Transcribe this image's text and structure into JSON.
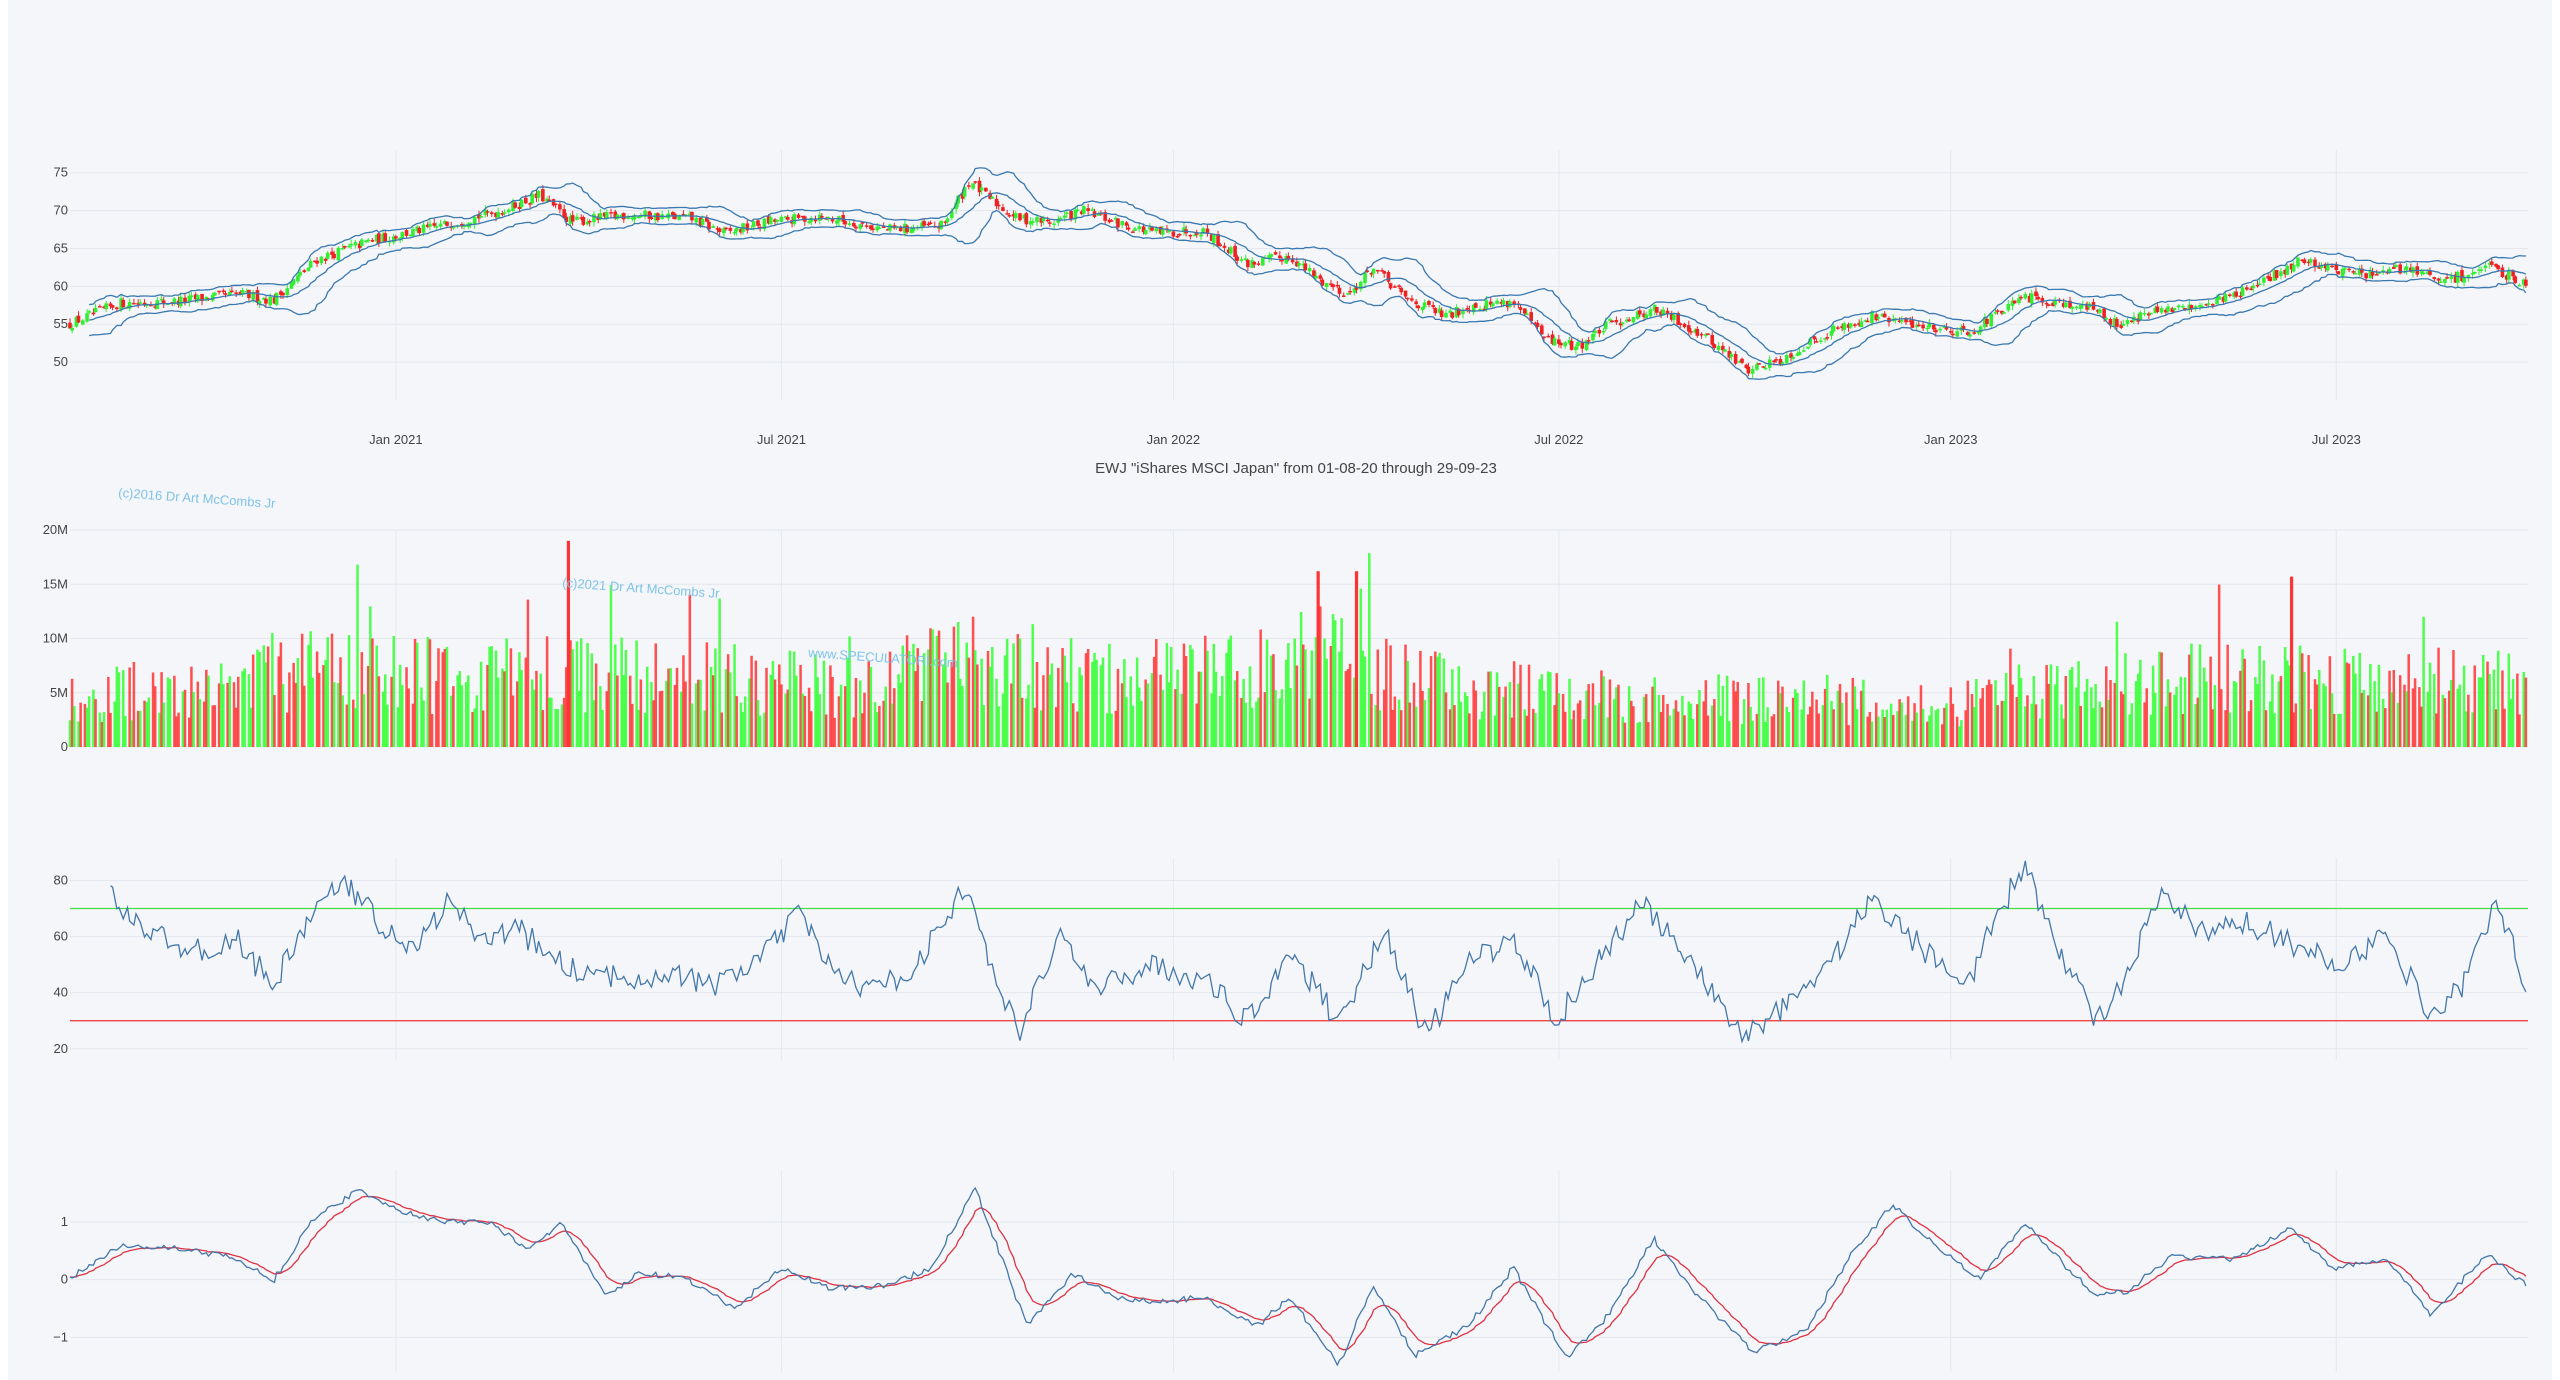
{
  "chart_data": [
    {
      "type": "candlestick",
      "panel": "price",
      "title": "EWJ \"iShares MSCI Japan\" from 01-08-20 through 29-09-23",
      "x_ticks": [
        "Jan 2021",
        "Jul 2021",
        "Jan 2022",
        "Jul 2022",
        "Jan 2023",
        "Jul 2023"
      ],
      "y_ticks": [
        "50",
        "55",
        "60",
        "65",
        "70",
        "75"
      ],
      "ylim": [
        45,
        78
      ],
      "x_range": [
        "2020-08-01",
        "2023-09-29"
      ],
      "overlays": [
        "bollinger-upper",
        "bollinger-middle",
        "bollinger-lower"
      ],
      "close_keypoints": [
        {
          "date": "2020-08-01",
          "value": 55.0
        },
        {
          "date": "2020-08-25",
          "value": 57.8
        },
        {
          "date": "2020-09-20",
          "value": 58.0
        },
        {
          "date": "2020-10-20",
          "value": 59.0
        },
        {
          "date": "2020-11-05",
          "value": 58.2
        },
        {
          "date": "2020-11-25",
          "value": 63.5
        },
        {
          "date": "2020-12-20",
          "value": 66.0
        },
        {
          "date": "2021-01-15",
          "value": 67.5
        },
        {
          "date": "2021-02-20",
          "value": 70.0
        },
        {
          "date": "2021-03-10",
          "value": 72.0
        },
        {
          "date": "2021-03-25",
          "value": 68.5
        },
        {
          "date": "2021-04-20",
          "value": 69.5
        },
        {
          "date": "2021-05-20",
          "value": 69.0
        },
        {
          "date": "2021-06-05",
          "value": 67.0
        },
        {
          "date": "2021-06-25",
          "value": 68.5
        },
        {
          "date": "2021-07-20",
          "value": 69.2
        },
        {
          "date": "2021-08-20",
          "value": 67.5
        },
        {
          "date": "2021-09-15",
          "value": 68.0
        },
        {
          "date": "2021-09-28",
          "value": 74.0
        },
        {
          "date": "2021-10-05",
          "value": 72.0
        },
        {
          "date": "2021-10-20",
          "value": 69.0
        },
        {
          "date": "2021-11-05",
          "value": 68.5
        },
        {
          "date": "2021-11-20",
          "value": 70.0
        },
        {
          "date": "2021-12-10",
          "value": 68.0
        },
        {
          "date": "2021-12-25",
          "value": 67.0
        },
        {
          "date": "2022-01-15",
          "value": 67.5
        },
        {
          "date": "2022-02-05",
          "value": 63.0
        },
        {
          "date": "2022-02-25",
          "value": 64.0
        },
        {
          "date": "2022-03-10",
          "value": 61.0
        },
        {
          "date": "2022-03-25",
          "value": 59.0
        },
        {
          "date": "2022-04-05",
          "value": 62.5
        },
        {
          "date": "2022-04-20",
          "value": 58.5
        },
        {
          "date": "2022-05-10",
          "value": 56.0
        },
        {
          "date": "2022-05-20",
          "value": 57.5
        },
        {
          "date": "2022-06-10",
          "value": 58.0
        },
        {
          "date": "2022-06-25",
          "value": 53.0
        },
        {
          "date": "2022-07-10",
          "value": 52.0
        },
        {
          "date": "2022-07-25",
          "value": 55.0
        },
        {
          "date": "2022-08-15",
          "value": 57.0
        },
        {
          "date": "2022-09-05",
          "value": 54.0
        },
        {
          "date": "2022-09-28",
          "value": 49.0
        },
        {
          "date": "2022-10-15",
          "value": 50.5
        },
        {
          "date": "2022-11-05",
          "value": 54.0
        },
        {
          "date": "2022-11-25",
          "value": 56.0
        },
        {
          "date": "2022-12-15",
          "value": 55.0
        },
        {
          "date": "2023-01-10",
          "value": 54.0
        },
        {
          "date": "2023-02-05",
          "value": 58.5
        },
        {
          "date": "2023-02-20",
          "value": 58.0
        },
        {
          "date": "2023-03-10",
          "value": 57.0
        },
        {
          "date": "2023-03-20",
          "value": 55.0
        },
        {
          "date": "2023-04-05",
          "value": 56.5
        },
        {
          "date": "2023-04-20",
          "value": 57.0
        },
        {
          "date": "2023-05-10",
          "value": 58.5
        },
        {
          "date": "2023-05-25",
          "value": 60.0
        },
        {
          "date": "2023-06-15",
          "value": 63.5
        },
        {
          "date": "2023-07-05",
          "value": 62.0
        },
        {
          "date": "2023-07-20",
          "value": 61.5
        },
        {
          "date": "2023-08-05",
          "value": 62.5
        },
        {
          "date": "2023-08-20",
          "value": 60.5
        },
        {
          "date": "2023-09-10",
          "value": 62.5
        },
        {
          "date": "2023-09-29",
          "value": 60.5
        }
      ]
    },
    {
      "type": "bar",
      "panel": "volume",
      "y_ticks": [
        "0",
        "5M",
        "10M",
        "15M",
        "20M"
      ],
      "ylim": [
        0,
        20000000
      ],
      "up_color": "#33ff33",
      "down_color": "#ff3333",
      "volume_keypoints": [
        {
          "date": "2020-08-01",
          "value": 5000000
        },
        {
          "date": "2020-10-01",
          "value": 5500000
        },
        {
          "date": "2020-12-01",
          "value": 7500000
        },
        {
          "date": "2021-02-01",
          "value": 6500000
        },
        {
          "date": "2021-04-01",
          "value": 7000000
        },
        {
          "date": "2021-06-01",
          "value": 6500000
        },
        {
          "date": "2021-08-01",
          "value": 5500000
        },
        {
          "date": "2021-10-01",
          "value": 8500000
        },
        {
          "date": "2021-12-01",
          "value": 6500000
        },
        {
          "date": "2022-02-01",
          "value": 7000000
        },
        {
          "date": "2022-03-15",
          "value": 9000000
        },
        {
          "date": "2022-05-01",
          "value": 6000000
        },
        {
          "date": "2022-07-01",
          "value": 5000000
        },
        {
          "date": "2022-09-01",
          "value": 4500000
        },
        {
          "date": "2022-11-01",
          "value": 4500000
        },
        {
          "date": "2023-01-01",
          "value": 4000000
        },
        {
          "date": "2023-03-01",
          "value": 5500000
        },
        {
          "date": "2023-05-01",
          "value": 6500000
        },
        {
          "date": "2023-07-01",
          "value": 6500000
        },
        {
          "date": "2023-09-29",
          "value": 6000000
        }
      ],
      "notable_peaks": [
        {
          "date": "2021-03-23",
          "value": 19000000
        },
        {
          "date": "2022-03-10",
          "value": 16200000
        },
        {
          "date": "2022-03-28",
          "value": 16200000
        },
        {
          "date": "2023-06-10",
          "value": 15700000
        }
      ]
    },
    {
      "type": "line",
      "panel": "rsi",
      "y_ticks": [
        "20",
        "40",
        "60",
        "80"
      ],
      "ylim": [
        16,
        88
      ],
      "reference_lines": [
        {
          "value": 70,
          "color": "#44dd44"
        },
        {
          "value": 30,
          "color": "#ee3333"
        }
      ],
      "series_color": "#4477aa",
      "rsi_keypoints": [
        {
          "date": "2020-08-20",
          "value": 75
        },
        {
          "date": "2020-09-10",
          "value": 60
        },
        {
          "date": "2020-10-01",
          "value": 55
        },
        {
          "date": "2020-10-20",
          "value": 58
        },
        {
          "date": "2020-11-05",
          "value": 42
        },
        {
          "date": "2020-11-25",
          "value": 72
        },
        {
          "date": "2020-12-10",
          "value": 78
        },
        {
          "date": "2020-12-25",
          "value": 65
        },
        {
          "date": "2021-01-10",
          "value": 55
        },
        {
          "date": "2021-01-25",
          "value": 72
        },
        {
          "date": "2021-02-10",
          "value": 60
        },
        {
          "date": "2021-03-01",
          "value": 62
        },
        {
          "date": "2021-03-20",
          "value": 50
        },
        {
          "date": "2021-04-10",
          "value": 45
        },
        {
          "date": "2021-05-10",
          "value": 47
        },
        {
          "date": "2021-06-01",
          "value": 42
        },
        {
          "date": "2021-06-25",
          "value": 55
        },
        {
          "date": "2021-07-10",
          "value": 68
        },
        {
          "date": "2021-07-25",
          "value": 48
        },
        {
          "date": "2021-08-15",
          "value": 40
        },
        {
          "date": "2021-09-05",
          "value": 52
        },
        {
          "date": "2021-09-25",
          "value": 78
        },
        {
          "date": "2021-10-20",
          "value": 25
        },
        {
          "date": "2021-11-10",
          "value": 62
        },
        {
          "date": "2021-11-25",
          "value": 40
        },
        {
          "date": "2021-12-20",
          "value": 50
        },
        {
          "date": "2022-01-15",
          "value": 45
        },
        {
          "date": "2022-02-05",
          "value": 30
        },
        {
          "date": "2022-02-25",
          "value": 55
        },
        {
          "date": "2022-03-20",
          "value": 30
        },
        {
          "date": "2022-04-10",
          "value": 62
        },
        {
          "date": "2022-04-30",
          "value": 25
        },
        {
          "date": "2022-05-20",
          "value": 50
        },
        {
          "date": "2022-06-10",
          "value": 60
        },
        {
          "date": "2022-06-30",
          "value": 30
        },
        {
          "date": "2022-07-20",
          "value": 52
        },
        {
          "date": "2022-08-10",
          "value": 72
        },
        {
          "date": "2022-09-01",
          "value": 50
        },
        {
          "date": "2022-09-25",
          "value": 25
        },
        {
          "date": "2022-10-15",
          "value": 35
        },
        {
          "date": "2022-11-10",
          "value": 55
        },
        {
          "date": "2022-11-25",
          "value": 74
        },
        {
          "date": "2022-12-20",
          "value": 55
        },
        {
          "date": "2023-01-10",
          "value": 45
        },
        {
          "date": "2023-01-25",
          "value": 70
        },
        {
          "date": "2023-02-05",
          "value": 85
        },
        {
          "date": "2023-02-20",
          "value": 58
        },
        {
          "date": "2023-03-10",
          "value": 30
        },
        {
          "date": "2023-03-25",
          "value": 45
        },
        {
          "date": "2023-04-10",
          "value": 75
        },
        {
          "date": "2023-05-01",
          "value": 60
        },
        {
          "date": "2023-05-20",
          "value": 65
        },
        {
          "date": "2023-06-10",
          "value": 58
        },
        {
          "date": "2023-07-01",
          "value": 50
        },
        {
          "date": "2023-07-25",
          "value": 60
        },
        {
          "date": "2023-08-15",
          "value": 32
        },
        {
          "date": "2023-09-01",
          "value": 45
        },
        {
          "date": "2023-09-15",
          "value": 75
        },
        {
          "date": "2023-09-29",
          "value": 42
        }
      ]
    },
    {
      "type": "line",
      "panel": "macd",
      "y_ticks": [
        "−1",
        "0",
        "1"
      ],
      "ylim": [
        -1.6,
        1.9
      ],
      "series": [
        {
          "color": "#4477aa",
          "line": "macd"
        },
        {
          "color": "#dd3344",
          "line": "signal"
        }
      ],
      "macd_keypoints": [
        {
          "date": "2020-08-01",
          "value": 0.0
        },
        {
          "date": "2020-08-25",
          "value": 0.6
        },
        {
          "date": "2020-09-20",
          "value": 0.55
        },
        {
          "date": "2020-10-15",
          "value": 0.4
        },
        {
          "date": "2020-11-05",
          "value": 0.0
        },
        {
          "date": "2020-11-25",
          "value": 1.1
        },
        {
          "date": "2020-12-15",
          "value": 1.55
        },
        {
          "date": "2021-01-10",
          "value": 1.1
        },
        {
          "date": "2021-01-25",
          "value": 1.0
        },
        {
          "date": "2021-02-15",
          "value": 1.0
        },
        {
          "date": "2021-03-05",
          "value": 0.5
        },
        {
          "date": "2021-03-20",
          "value": 1.0
        },
        {
          "date": "2021-04-10",
          "value": -0.3
        },
        {
          "date": "2021-04-25",
          "value": 0.1
        },
        {
          "date": "2021-05-15",
          "value": 0.05
        },
        {
          "date": "2021-06-10",
          "value": -0.5
        },
        {
          "date": "2021-07-01",
          "value": 0.2
        },
        {
          "date": "2021-07-25",
          "value": -0.15
        },
        {
          "date": "2021-08-20",
          "value": -0.1
        },
        {
          "date": "2021-09-10",
          "value": 0.2
        },
        {
          "date": "2021-09-30",
          "value": 1.6
        },
        {
          "date": "2021-10-25",
          "value": -0.8
        },
        {
          "date": "2021-11-15",
          "value": 0.1
        },
        {
          "date": "2021-12-05",
          "value": -0.3
        },
        {
          "date": "2021-12-25",
          "value": -0.4
        },
        {
          "date": "2022-01-15",
          "value": -0.3
        },
        {
          "date": "2022-02-10",
          "value": -0.8
        },
        {
          "date": "2022-02-25",
          "value": -0.3
        },
        {
          "date": "2022-03-20",
          "value": -1.5
        },
        {
          "date": "2022-04-05",
          "value": -0.1
        },
        {
          "date": "2022-04-25",
          "value": -1.3
        },
        {
          "date": "2022-05-20",
          "value": -0.8
        },
        {
          "date": "2022-06-10",
          "value": 0.2
        },
        {
          "date": "2022-07-05",
          "value": -1.35
        },
        {
          "date": "2022-07-25",
          "value": -0.6
        },
        {
          "date": "2022-08-15",
          "value": 0.7
        },
        {
          "date": "2022-09-05",
          "value": -0.3
        },
        {
          "date": "2022-10-01",
          "value": -1.25
        },
        {
          "date": "2022-10-25",
          "value": -0.9
        },
        {
          "date": "2022-11-15",
          "value": 0.4
        },
        {
          "date": "2022-12-05",
          "value": 1.3
        },
        {
          "date": "2022-12-25",
          "value": 0.6
        },
        {
          "date": "2023-01-15",
          "value": 0.0
        },
        {
          "date": "2023-02-05",
          "value": 1.0
        },
        {
          "date": "2023-03-10",
          "value": -0.3
        },
        {
          "date": "2023-03-25",
          "value": -0.2
        },
        {
          "date": "2023-04-15",
          "value": 0.4
        },
        {
          "date": "2023-05-15",
          "value": 0.35
        },
        {
          "date": "2023-06-10",
          "value": 0.9
        },
        {
          "date": "2023-06-30",
          "value": 0.2
        },
        {
          "date": "2023-07-25",
          "value": 0.35
        },
        {
          "date": "2023-08-15",
          "value": -0.6
        },
        {
          "date": "2023-09-10",
          "value": 0.45
        },
        {
          "date": "2023-09-29",
          "value": -0.1
        }
      ]
    }
  ],
  "watermarks": [
    {
      "text": "(c)2016 Dr Art McCombs Jr",
      "panel": "price-gap"
    },
    {
      "text": "(c)2021 Dr Art McCombs Jr",
      "panel": "volume"
    },
    {
      "text": "www.SPECULATORI.com",
      "panel": "volume"
    }
  ]
}
